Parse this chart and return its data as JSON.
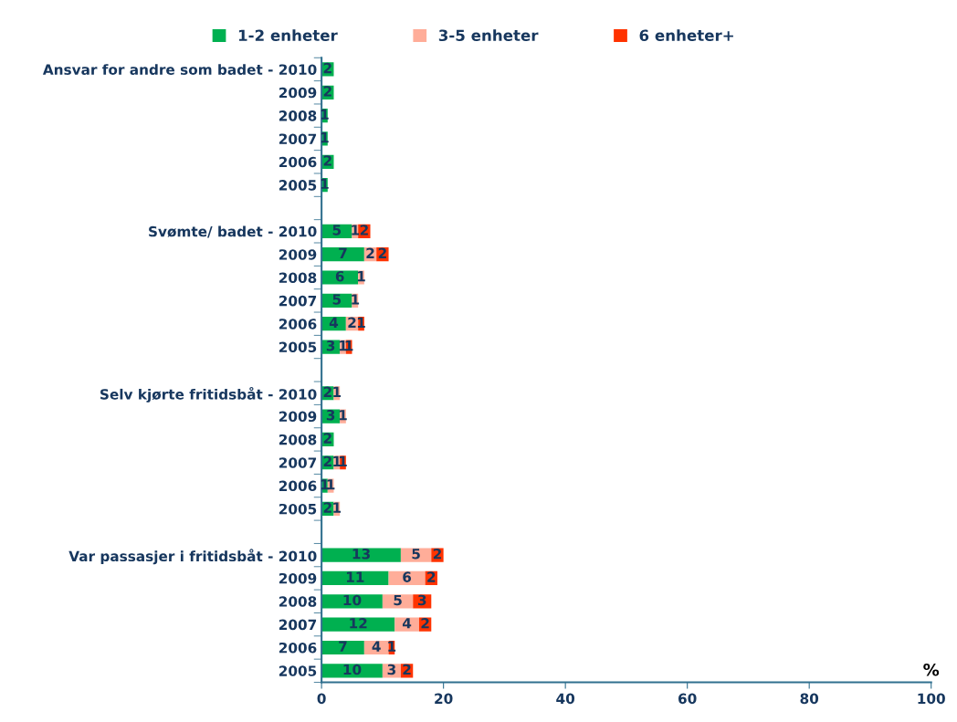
{
  "chart_data": {
    "type": "bar",
    "orientation": "horizontal",
    "stacked": true,
    "data_labels": true,
    "legend": "top",
    "grid": false,
    "xlabel": "%",
    "categories": [
      "Ansvar for andre som badet - 2010",
      "2009",
      "2008",
      "2007",
      "2006",
      "2005",
      null,
      "Svømte/ badet - 2010",
      "2009",
      "2008",
      "2007",
      "2006",
      "2005",
      null,
      "Selv kjørte fritidsbåt - 2010",
      "2009",
      "2008",
      "2007",
      "2006",
      "2005",
      null,
      "Var passasjer i fritidsbåt - 2010",
      "2009",
      "2008",
      "2007",
      "2006",
      "2005"
    ],
    "xlim": [
      0,
      100
    ],
    "xticks": [
      0,
      20,
      40,
      60,
      80,
      100
    ],
    "series": [
      {
        "name": "1-2 enheter",
        "color": "#00b050",
        "values": [
          2,
          2,
          1,
          1,
          2,
          1,
          null,
          5,
          7,
          6,
          5,
          4,
          3,
          null,
          2,
          3,
          2,
          2,
          1,
          2,
          null,
          13,
          11,
          10,
          12,
          7,
          10
        ]
      },
      {
        "name": "3-5 enheter",
        "color": "#ffad99",
        "values": [
          null,
          null,
          null,
          null,
          null,
          null,
          null,
          1,
          2,
          1,
          1,
          2,
          1,
          null,
          1,
          1,
          null,
          1,
          1,
          1,
          null,
          5,
          6,
          5,
          4,
          4,
          3
        ]
      },
      {
        "name": "6 enheter+",
        "color": "#ff3300",
        "values": [
          null,
          null,
          null,
          null,
          null,
          null,
          null,
          2,
          2,
          null,
          null,
          1,
          1,
          null,
          null,
          null,
          null,
          1,
          null,
          null,
          null,
          2,
          2,
          3,
          2,
          1,
          2
        ]
      }
    ]
  }
}
